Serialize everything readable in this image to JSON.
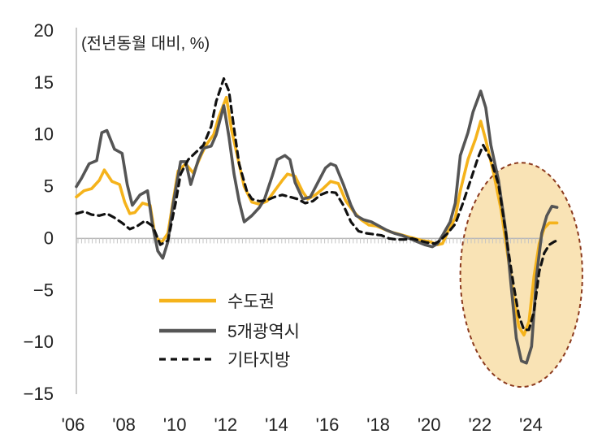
{
  "chart_data": {
    "type": "line",
    "title": "",
    "unit_label": "(전년동월 대비, %)",
    "xlabel": "",
    "ylabel": "",
    "xlim": [
      2006,
      2026
    ],
    "ylim": [
      -15,
      20
    ],
    "yticks": [
      20,
      15,
      10,
      5,
      0,
      -5,
      -10,
      -15
    ],
    "ytick_labels": [
      "20",
      "15",
      "10",
      "5",
      "0",
      "−5",
      "−10",
      "−15"
    ],
    "xticks": [
      2006,
      2008,
      2010,
      2012,
      2014,
      2016,
      2018,
      2020,
      2022,
      2024
    ],
    "xtick_labels": [
      "'06",
      "'08",
      "'10",
      "'12",
      "'14",
      "'16",
      "'18",
      "'20",
      "'22",
      "'24"
    ],
    "grid": false,
    "legend_position": "bottom-left",
    "highlight_region": {
      "x_range": [
        2021.1,
        2025.9
      ],
      "y_range": [
        -14.3,
        7.3
      ],
      "fill": "#f9e3b5",
      "stroke": "#8c3a1e"
    },
    "series": [
      {
        "name": "수도권",
        "color": "#f5b31b",
        "style": "solid",
        "points": [
          [
            2006.0,
            4.0
          ],
          [
            2006.3,
            4.6
          ],
          [
            2006.6,
            4.8
          ],
          [
            2006.9,
            5.6
          ],
          [
            2007.1,
            6.6
          ],
          [
            2007.4,
            5.5
          ],
          [
            2007.7,
            5.2
          ],
          [
            2007.9,
            3.5
          ],
          [
            2008.1,
            2.4
          ],
          [
            2008.3,
            2.5
          ],
          [
            2008.6,
            3.4
          ],
          [
            2008.9,
            3.2
          ],
          [
            2009.1,
            0.2
          ],
          [
            2009.35,
            -0.4
          ],
          [
            2009.6,
            0.5
          ],
          [
            2009.8,
            3.5
          ],
          [
            2010.0,
            6.5
          ],
          [
            2010.3,
            7.2
          ],
          [
            2010.6,
            6.3
          ],
          [
            2010.9,
            8.0
          ],
          [
            2011.1,
            9.0
          ],
          [
            2011.4,
            10.0
          ],
          [
            2011.6,
            11.7
          ],
          [
            2011.9,
            13.6
          ],
          [
            2012.1,
            10.5
          ],
          [
            2012.4,
            7.2
          ],
          [
            2012.6,
            5.0
          ],
          [
            2012.9,
            3.5
          ],
          [
            2013.2,
            3.3
          ],
          [
            2013.5,
            3.6
          ],
          [
            2013.8,
            4.6
          ],
          [
            2014.1,
            5.6
          ],
          [
            2014.3,
            6.2
          ],
          [
            2014.6,
            6.0
          ],
          [
            2014.9,
            4.5
          ],
          [
            2015.1,
            3.8
          ],
          [
            2015.4,
            4.2
          ],
          [
            2015.7,
            4.8
          ],
          [
            2016.0,
            5.5
          ],
          [
            2016.3,
            5.3
          ],
          [
            2016.6,
            3.6
          ],
          [
            2016.9,
            2.6
          ],
          [
            2017.2,
            1.8
          ],
          [
            2017.5,
            1.3
          ],
          [
            2017.8,
            1.2
          ],
          [
            2018.1,
            0.9
          ],
          [
            2018.4,
            0.6
          ],
          [
            2018.7,
            0.4
          ],
          [
            2019.0,
            0.2
          ],
          [
            2019.3,
            0.0
          ],
          [
            2019.6,
            -0.2
          ],
          [
            2019.9,
            -0.3
          ],
          [
            2020.2,
            -0.6
          ],
          [
            2020.4,
            -0.5
          ],
          [
            2020.6,
            0.6
          ],
          [
            2020.9,
            2.0
          ],
          [
            2021.1,
            4.6
          ],
          [
            2021.4,
            7.6
          ],
          [
            2021.7,
            9.6
          ],
          [
            2021.9,
            11.3
          ],
          [
            2022.1,
            9.5
          ],
          [
            2022.4,
            6.4
          ],
          [
            2022.7,
            2.8
          ],
          [
            2023.0,
            -2.2
          ],
          [
            2023.2,
            -5.6
          ],
          [
            2023.4,
            -8.5
          ],
          [
            2023.6,
            -9.3
          ],
          [
            2023.8,
            -8.0
          ],
          [
            2024.0,
            -3.6
          ],
          [
            2024.2,
            -0.5
          ],
          [
            2024.4,
            1.0
          ],
          [
            2024.6,
            1.5
          ],
          [
            2024.9,
            1.5
          ]
        ]
      },
      {
        "name": "5개광역시",
        "color": "#555555",
        "style": "solid",
        "points": [
          [
            2006.0,
            5.0
          ],
          [
            2006.2,
            5.8
          ],
          [
            2006.5,
            7.2
          ],
          [
            2006.8,
            7.5
          ],
          [
            2007.0,
            10.2
          ],
          [
            2007.2,
            10.4
          ],
          [
            2007.5,
            8.6
          ],
          [
            2007.8,
            8.2
          ],
          [
            2008.0,
            5.2
          ],
          [
            2008.2,
            3.2
          ],
          [
            2008.5,
            4.2
          ],
          [
            2008.8,
            4.6
          ],
          [
            2009.0,
            1.2
          ],
          [
            2009.2,
            -1.2
          ],
          [
            2009.4,
            -1.9
          ],
          [
            2009.6,
            -0.3
          ],
          [
            2009.8,
            3.2
          ],
          [
            2010.1,
            7.4
          ],
          [
            2010.3,
            7.4
          ],
          [
            2010.5,
            5.2
          ],
          [
            2010.8,
            7.6
          ],
          [
            2011.0,
            8.7
          ],
          [
            2011.3,
            8.9
          ],
          [
            2011.5,
            10.0
          ],
          [
            2011.8,
            12.8
          ],
          [
            2012.0,
            9.8
          ],
          [
            2012.2,
            6.2
          ],
          [
            2012.4,
            3.6
          ],
          [
            2012.6,
            1.6
          ],
          [
            2012.9,
            2.2
          ],
          [
            2013.2,
            3.0
          ],
          [
            2013.4,
            3.8
          ],
          [
            2013.7,
            6.0
          ],
          [
            2013.9,
            7.6
          ],
          [
            2014.2,
            8.0
          ],
          [
            2014.4,
            7.6
          ],
          [
            2014.6,
            5.4
          ],
          [
            2014.9,
            3.8
          ],
          [
            2015.2,
            4.0
          ],
          [
            2015.5,
            5.4
          ],
          [
            2015.8,
            6.8
          ],
          [
            2016.0,
            7.2
          ],
          [
            2016.2,
            7.0
          ],
          [
            2016.5,
            5.2
          ],
          [
            2016.8,
            3.2
          ],
          [
            2017.0,
            2.2
          ],
          [
            2017.3,
            1.8
          ],
          [
            2017.6,
            1.6
          ],
          [
            2017.9,
            1.2
          ],
          [
            2018.2,
            0.8
          ],
          [
            2018.5,
            0.5
          ],
          [
            2018.8,
            0.3
          ],
          [
            2019.1,
            0.0
          ],
          [
            2019.4,
            -0.3
          ],
          [
            2019.7,
            -0.6
          ],
          [
            2020.0,
            -0.8
          ],
          [
            2020.2,
            -0.5
          ],
          [
            2020.4,
            0.3
          ],
          [
            2020.7,
            1.6
          ],
          [
            2020.9,
            3.4
          ],
          [
            2021.1,
            8.0
          ],
          [
            2021.4,
            10.2
          ],
          [
            2021.6,
            12.2
          ],
          [
            2021.9,
            14.2
          ],
          [
            2022.1,
            12.6
          ],
          [
            2022.3,
            9.0
          ],
          [
            2022.6,
            5.6
          ],
          [
            2022.9,
            0.5
          ],
          [
            2023.1,
            -4.6
          ],
          [
            2023.3,
            -9.6
          ],
          [
            2023.5,
            -11.8
          ],
          [
            2023.7,
            -12.0
          ],
          [
            2023.9,
            -10.4
          ],
          [
            2024.1,
            -3.6
          ],
          [
            2024.3,
            0.5
          ],
          [
            2024.5,
            2.2
          ],
          [
            2024.7,
            3.1
          ],
          [
            2024.9,
            3.0
          ]
        ]
      },
      {
        "name": "기타지방",
        "color": "#111111",
        "style": "dashed",
        "points": [
          [
            2006.0,
            2.4
          ],
          [
            2006.3,
            2.6
          ],
          [
            2006.6,
            2.3
          ],
          [
            2006.9,
            2.2
          ],
          [
            2007.2,
            2.4
          ],
          [
            2007.5,
            2.0
          ],
          [
            2007.8,
            1.5
          ],
          [
            2008.1,
            0.9
          ],
          [
            2008.4,
            1.2
          ],
          [
            2008.7,
            1.7
          ],
          [
            2009.0,
            1.2
          ],
          [
            2009.3,
            -0.6
          ],
          [
            2009.6,
            -0.2
          ],
          [
            2009.9,
            3.4
          ],
          [
            2010.1,
            6.2
          ],
          [
            2010.4,
            7.6
          ],
          [
            2010.7,
            8.3
          ],
          [
            2011.0,
            9.0
          ],
          [
            2011.3,
            10.8
          ],
          [
            2011.5,
            13.2
          ],
          [
            2011.8,
            15.4
          ],
          [
            2012.0,
            14.2
          ],
          [
            2012.2,
            10.6
          ],
          [
            2012.4,
            7.2
          ],
          [
            2012.7,
            4.6
          ],
          [
            2012.9,
            3.8
          ],
          [
            2013.2,
            3.6
          ],
          [
            2013.5,
            3.7
          ],
          [
            2013.8,
            4.0
          ],
          [
            2014.1,
            4.2
          ],
          [
            2014.4,
            4.0
          ],
          [
            2014.7,
            3.8
          ],
          [
            2015.0,
            3.4
          ],
          [
            2015.3,
            3.6
          ],
          [
            2015.6,
            4.2
          ],
          [
            2015.9,
            4.5
          ],
          [
            2016.2,
            4.4
          ],
          [
            2016.5,
            3.2
          ],
          [
            2016.8,
            1.6
          ],
          [
            2017.1,
            0.7
          ],
          [
            2017.4,
            0.5
          ],
          [
            2017.7,
            0.4
          ],
          [
            2018.0,
            0.3
          ],
          [
            2018.3,
            0.0
          ],
          [
            2018.6,
            -0.1
          ],
          [
            2018.9,
            -0.1
          ],
          [
            2019.2,
            0.0
          ],
          [
            2019.5,
            -0.2
          ],
          [
            2019.8,
            -0.4
          ],
          [
            2020.1,
            -0.5
          ],
          [
            2020.3,
            -0.2
          ],
          [
            2020.6,
            0.5
          ],
          [
            2020.9,
            1.4
          ],
          [
            2021.2,
            3.4
          ],
          [
            2021.5,
            5.6
          ],
          [
            2021.8,
            7.8
          ],
          [
            2022.0,
            9.0
          ],
          [
            2022.3,
            7.6
          ],
          [
            2022.6,
            5.2
          ],
          [
            2022.8,
            2.0
          ],
          [
            2023.0,
            -1.4
          ],
          [
            2023.2,
            -4.6
          ],
          [
            2023.4,
            -7.4
          ],
          [
            2023.6,
            -8.8
          ],
          [
            2023.8,
            -8.8
          ],
          [
            2024.0,
            -7.0
          ],
          [
            2024.2,
            -3.2
          ],
          [
            2024.4,
            -1.4
          ],
          [
            2024.6,
            -0.6
          ],
          [
            2024.8,
            -0.3
          ],
          [
            2024.9,
            -0.2
          ]
        ]
      }
    ]
  }
}
